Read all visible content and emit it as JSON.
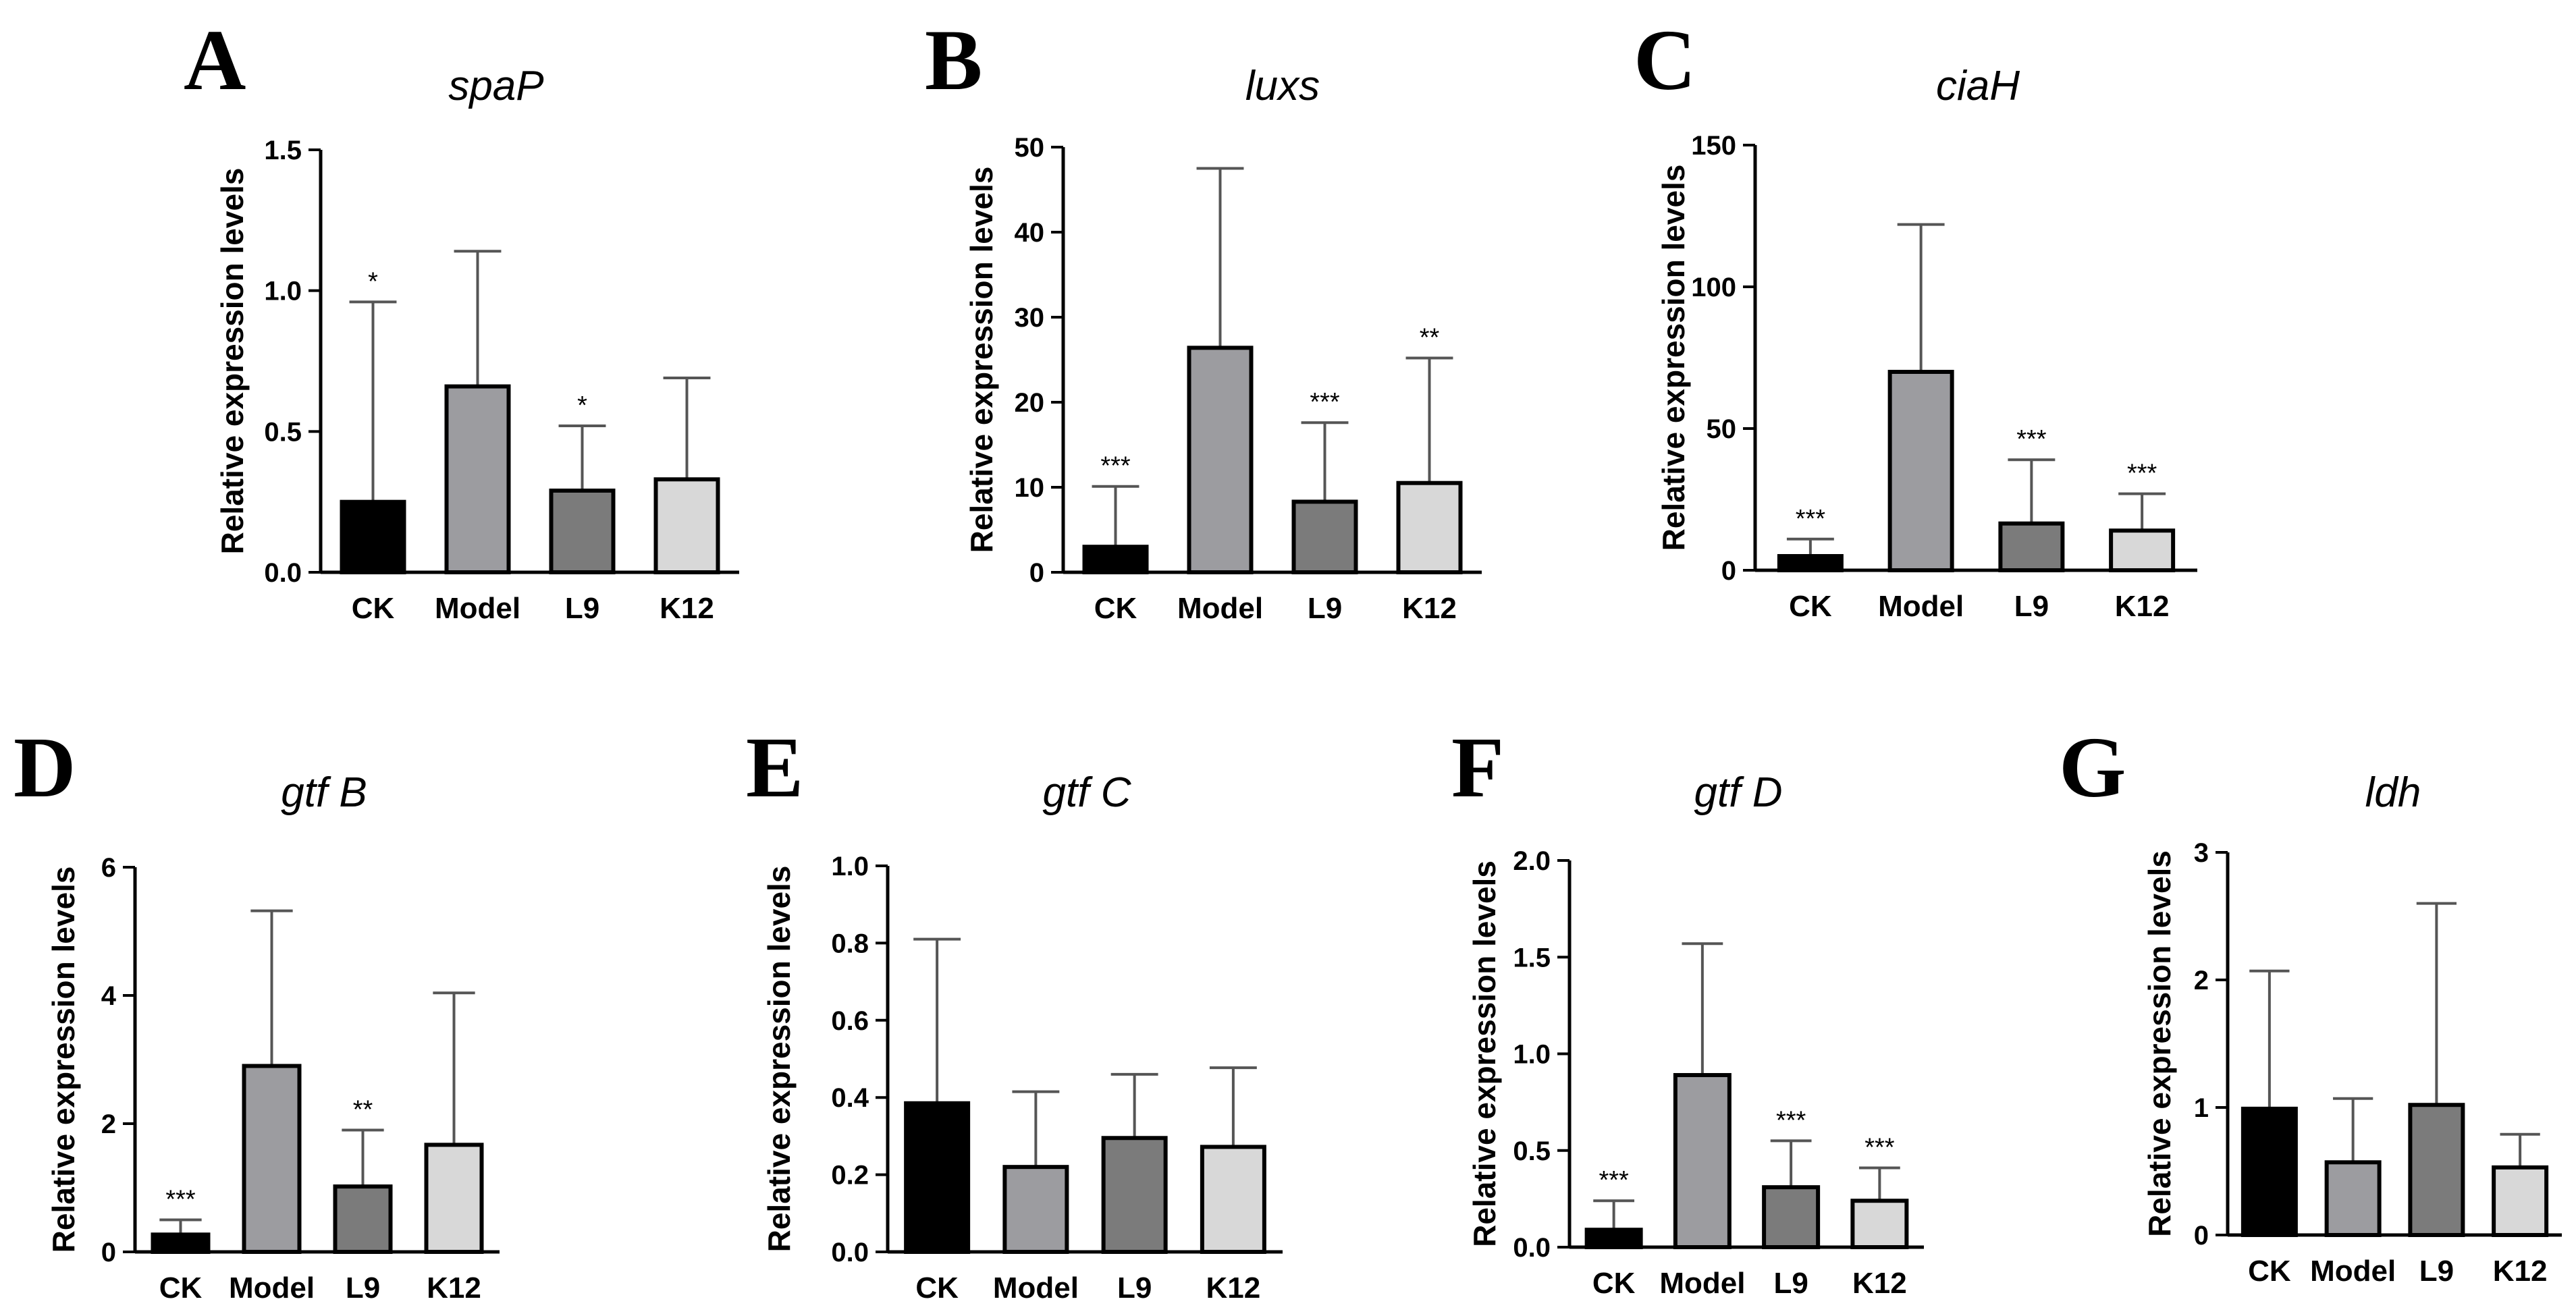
{
  "colors": {
    "CK": "#000000",
    "Model": "#9c9ca0",
    "L9": "#7b7b7b",
    "K12": "#d8d8d8"
  },
  "chart_data": [
    {
      "id": "A",
      "letter": "A",
      "type": "bar",
      "title": "spaP",
      "xlabel": "",
      "ylabel": "Relative expression levels",
      "categories": [
        "CK",
        "Model",
        "L9",
        "K12"
      ],
      "values": [
        0.25,
        0.66,
        0.29,
        0.33
      ],
      "errors": [
        0.71,
        0.48,
        0.23,
        0.36
      ],
      "significance": [
        "*",
        "",
        "*",
        ""
      ],
      "ylim": [
        0,
        1.5
      ],
      "yticks": [
        "0.0",
        "0.5",
        "1.0",
        "1.5"
      ]
    },
    {
      "id": "B",
      "letter": "B",
      "type": "bar",
      "title": "luxs",
      "xlabel": "",
      "ylabel": "Relative expression levels",
      "categories": [
        "CK",
        "Model",
        "L9",
        "K12"
      ],
      "values": [
        3,
        26.4,
        8.3,
        10.5
      ],
      "errors": [
        7.1,
        21.1,
        9.3,
        14.7
      ],
      "significance": [
        "***",
        "",
        "***",
        "**"
      ],
      "ylim": [
        0,
        50
      ],
      "yticks": [
        "0",
        "10",
        "20",
        "30",
        "40",
        "50"
      ]
    },
    {
      "id": "C",
      "letter": "C",
      "type": "bar",
      "title": "ciaH",
      "xlabel": "",
      "ylabel": "Relative expression levels",
      "categories": [
        "CK",
        "Model",
        "L9",
        "K12"
      ],
      "values": [
        5,
        70,
        16.5,
        14
      ],
      "errors": [
        6,
        52,
        22.5,
        13
      ],
      "significance": [
        "***",
        "",
        "***",
        "***"
      ],
      "ylim": [
        0,
        150
      ],
      "yticks": [
        "0",
        "50",
        "100",
        "150"
      ]
    },
    {
      "id": "D",
      "letter": "D",
      "type": "bar",
      "title": "gtf B",
      "xlabel": "",
      "ylabel": "Relative expression levels",
      "categories": [
        "CK",
        "Model",
        "L9",
        "K12"
      ],
      "values": [
        0.27,
        2.9,
        1.02,
        1.67
      ],
      "errors": [
        0.23,
        2.42,
        0.88,
        2.37
      ],
      "significance": [
        "***",
        "",
        "**",
        ""
      ],
      "ylim": [
        0,
        6
      ],
      "yticks": [
        "0",
        "2",
        "4",
        "6"
      ]
    },
    {
      "id": "E",
      "letter": "E",
      "type": "bar",
      "title": "gtf C",
      "xlabel": "",
      "ylabel": "Relative expression levels",
      "categories": [
        "CK",
        "Model",
        "L9",
        "K12"
      ],
      "values": [
        0.385,
        0.22,
        0.295,
        0.272
      ],
      "errors": [
        0.425,
        0.195,
        0.165,
        0.205
      ],
      "significance": [
        "",
        "",
        "",
        ""
      ],
      "ylim": [
        0,
        1.0
      ],
      "yticks": [
        "0.0",
        "0.2",
        "0.4",
        "0.6",
        "0.8",
        "1.0"
      ]
    },
    {
      "id": "F",
      "letter": "F",
      "type": "bar",
      "title": "gtf D",
      "xlabel": "",
      "ylabel": "Relative expression levels",
      "categories": [
        "CK",
        "Model",
        "L9",
        "K12"
      ],
      "values": [
        0.09,
        0.89,
        0.31,
        0.24
      ],
      "errors": [
        0.15,
        0.68,
        0.24,
        0.17
      ],
      "significance": [
        "***",
        "",
        "***",
        "***"
      ],
      "ylim": [
        0,
        2.0
      ],
      "yticks": [
        "0.0",
        "0.5",
        "1.0",
        "1.5",
        "2.0"
      ]
    },
    {
      "id": "G",
      "letter": "G",
      "type": "bar",
      "title": "ldh",
      "xlabel": "",
      "ylabel": "Relative expression levels",
      "categories": [
        "CK",
        "Model",
        "L9",
        "K12"
      ],
      "values": [
        0.99,
        0.57,
        1.02,
        0.53
      ],
      "errors": [
        1.08,
        0.5,
        1.58,
        0.26
      ],
      "significance": [
        "",
        "",
        "",
        ""
      ],
      "ylim": [
        0,
        3
      ],
      "yticks": [
        "0",
        "1",
        "2",
        "3"
      ]
    }
  ]
}
